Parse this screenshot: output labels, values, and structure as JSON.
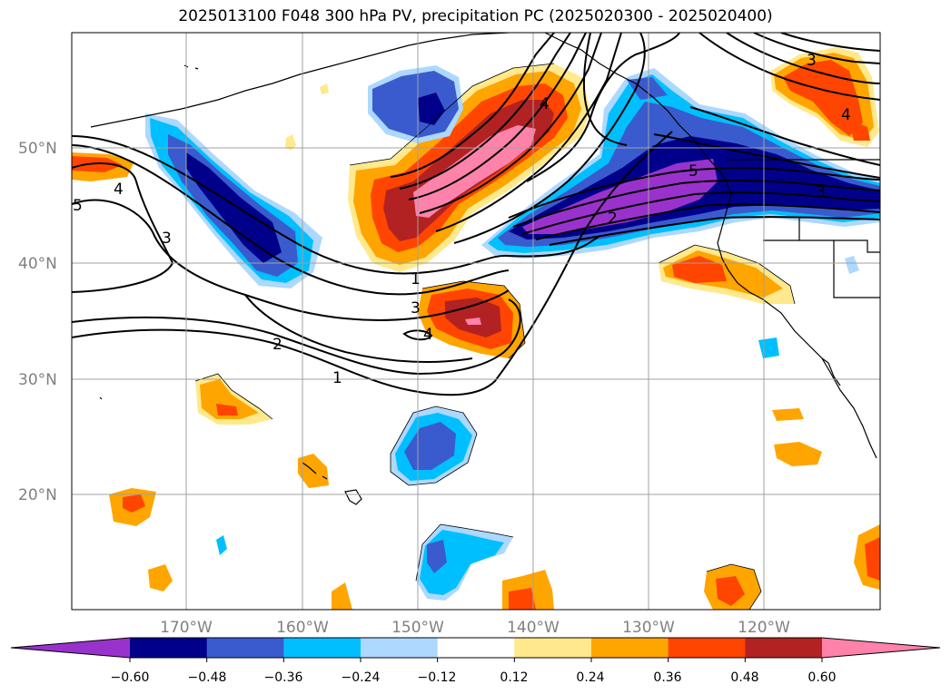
{
  "title": "2025013100 F048 300 hPa PV, precipitation PC (2025020300 - 2025020400)",
  "map": {
    "lat_labels": [
      "50°N",
      "40°N",
      "30°N",
      "20°N"
    ],
    "lon_labels": [
      "170°W",
      "160°W",
      "150°W",
      "140°W",
      "130°W",
      "120°W"
    ],
    "pv_contour_labels": [
      "1",
      "2",
      "3",
      "4",
      "5"
    ]
  },
  "colorbar": {
    "ticks": [
      "−0.60",
      "−0.48",
      "−0.36",
      "−0.24",
      "−0.12",
      "0.12",
      "0.24",
      "0.36",
      "0.48",
      "0.60"
    ],
    "colors": [
      "#9932cc",
      "#00008b",
      "#3a5bcd",
      "#00bfff",
      "#add8ff",
      "#ffffff",
      "#ffe98c",
      "#ffa500",
      "#ff4500",
      "#b22222",
      "#ff82ab"
    ]
  }
}
